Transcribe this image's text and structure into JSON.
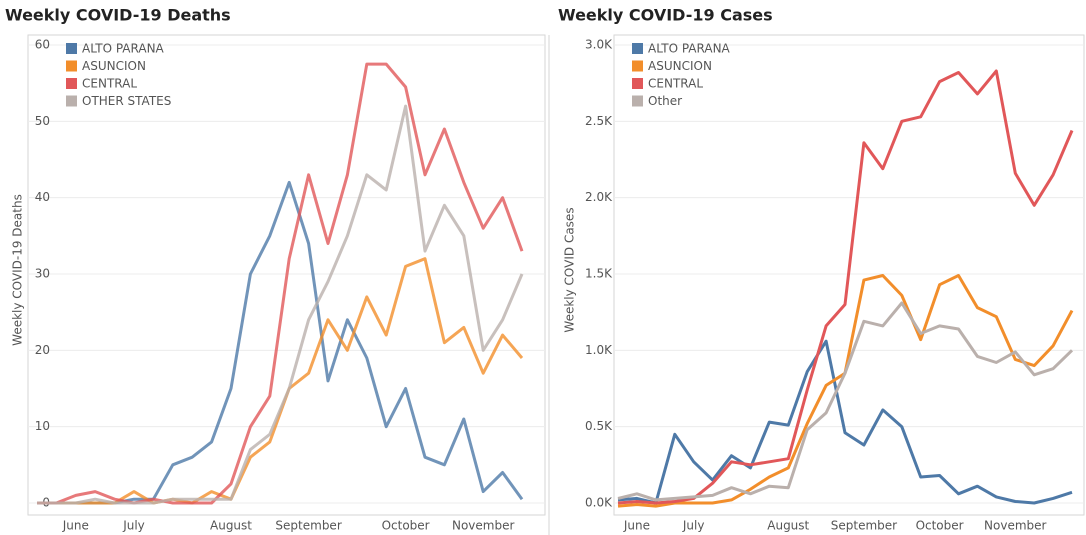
{
  "chart_data": [
    {
      "type": "line",
      "title": "Weekly COVID-19 Deaths",
      "y_label": "Weekly COVID-19 Deaths",
      "categories": [
        null,
        null,
        "June",
        null,
        null,
        "July",
        null,
        null,
        null,
        null,
        "August",
        null,
        null,
        null,
        "September",
        null,
        null,
        null,
        null,
        "October",
        null,
        null,
        null,
        "November",
        null,
        null
      ],
      "series": [
        {
          "name": "ALTO PARANA",
          "color": "#4e79a7",
          "values": [
            0,
            0,
            0,
            0,
            0,
            0.5,
            0.5,
            5,
            6,
            8,
            15,
            30,
            35,
            42,
            34,
            16,
            24,
            19,
            10,
            15,
            6,
            5,
            11,
            1.5,
            4,
            0.5
          ]
        },
        {
          "name": "ASUNCION",
          "color": "#f28e2b",
          "values": [
            0,
            0,
            0,
            0,
            0,
            1.5,
            0,
            0.5,
            0,
            1.5,
            0.5,
            6,
            8,
            15,
            17,
            24,
            20,
            27,
            22,
            31,
            32,
            21,
            23,
            17,
            22,
            19
          ]
        },
        {
          "name": "CENTRAL",
          "color": "#e15759",
          "values": [
            0,
            0,
            1,
            1.5,
            0.5,
            0,
            0.5,
            0,
            0,
            0,
            2.5,
            10,
            14,
            32,
            43,
            34,
            43,
            57.5,
            57.5,
            54.5,
            43,
            49,
            42,
            36,
            40,
            33
          ]
        },
        {
          "name": "OTHER STATES",
          "color": "#bab0ac",
          "values": [
            0,
            0,
            0,
            0.5,
            0,
            0,
            0,
            0.5,
            0.5,
            0.5,
            0.5,
            7,
            9,
            15,
            24,
            29,
            35,
            43,
            41,
            52,
            33,
            39,
            35,
            20,
            24,
            30
          ]
        }
      ],
      "ylim": [
        0,
        60
      ],
      "yticks": [
        0,
        10,
        20,
        30,
        40,
        50,
        60
      ],
      "grid": true,
      "legend": "top-left"
    },
    {
      "type": "line",
      "title": "Weekly COVID-19 Cases",
      "y_label": "Weekly COVID Cases",
      "categories": [
        null,
        "June",
        null,
        null,
        "July",
        null,
        null,
        null,
        null,
        "August",
        null,
        null,
        null,
        "September",
        null,
        null,
        null,
        "October",
        null,
        null,
        null,
        "November",
        null,
        null,
        null
      ],
      "series": [
        {
          "name": "ALTO PARANA",
          "color": "#4e79a7",
          "values": [
            20,
            30,
            0,
            450,
            270,
            150,
            310,
            230,
            530,
            510,
            860,
            1060,
            460,
            380,
            610,
            500,
            170,
            180,
            60,
            110,
            40,
            10,
            0,
            30,
            70
          ]
        },
        {
          "name": "ASUNCION",
          "color": "#f28e2b",
          "values": [
            -20,
            -10,
            -20,
            0,
            0,
            0,
            20,
            90,
            170,
            230,
            520,
            770,
            850,
            1460,
            1490,
            1360,
            1070,
            1430,
            1490,
            1280,
            1220,
            940,
            900,
            1030,
            1260
          ]
        },
        {
          "name": "CENTRAL",
          "color": "#e15759",
          "values": [
            0,
            10,
            0,
            10,
            30,
            130,
            270,
            250,
            270,
            290,
            740,
            1160,
            1300,
            2360,
            2190,
            2500,
            2530,
            2760,
            2820,
            2680,
            2830,
            2160,
            1950,
            2150,
            2440
          ]
        },
        {
          "name": "Other",
          "color": "#bab0ac",
          "values": [
            30,
            60,
            20,
            30,
            40,
            50,
            100,
            60,
            110,
            100,
            480,
            590,
            850,
            1190,
            1160,
            1310,
            1110,
            1160,
            1140,
            960,
            920,
            990,
            840,
            880,
            1000
          ]
        }
      ],
      "ylim": [
        0,
        3000
      ],
      "yticks": [
        {
          "value": 0,
          "label": "0.0K"
        },
        {
          "value": 500,
          "label": "0.5K"
        },
        {
          "value": 1000,
          "label": "1.0K"
        },
        {
          "value": 1500,
          "label": "1.5K"
        },
        {
          "value": 2000,
          "label": "2.0K"
        },
        {
          "value": 2500,
          "label": "2.5K"
        },
        {
          "value": 3000,
          "label": "3.0K"
        }
      ],
      "grid": true,
      "legend": "top-left"
    }
  ]
}
